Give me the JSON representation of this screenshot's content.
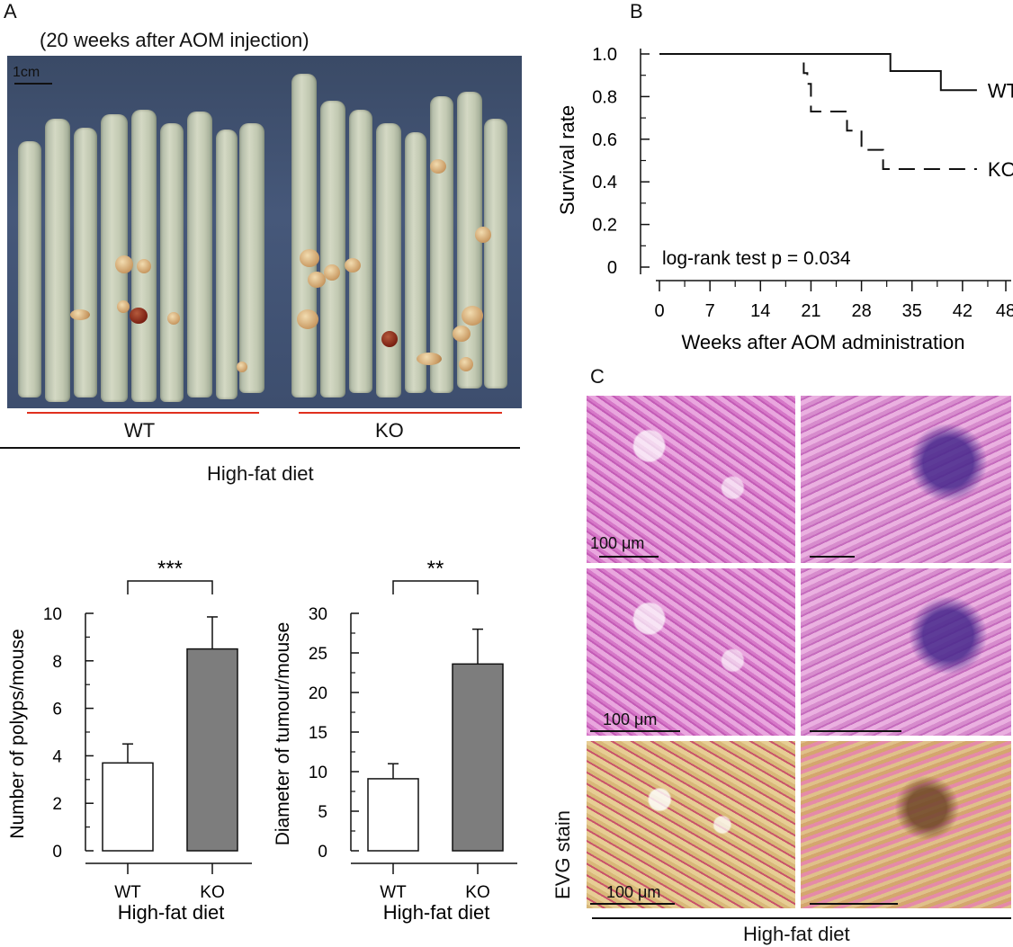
{
  "panel_a": {
    "label": "A",
    "title": "(20 weeks after AOM injection)",
    "scale": "1cm",
    "group_wt": "WT",
    "group_ko": "KO",
    "diet": "High-fat diet"
  },
  "panel_b": {
    "label": "B"
  },
  "panel_c": {
    "label": "C",
    "scale_label": "100 μm",
    "stain_label": "EVG stain",
    "diet": "High-fat diet"
  },
  "chart_data": [
    {
      "type": "line",
      "ylabel": "Survival rate",
      "xlabel": "Weeks after AOM administration",
      "xlim": [
        0,
        48
      ],
      "ylim": [
        0,
        1.0
      ],
      "xticks": [
        0,
        7,
        14,
        21,
        28,
        35,
        42,
        48
      ],
      "yticks": [
        "0",
        "0.2",
        "0.4",
        "0.6",
        "0.8",
        "1.0"
      ],
      "annotation": "log-rank test p = 0.034",
      "series": [
        {
          "name": "WT",
          "style": "solid",
          "x": [
            0,
            32,
            32,
            39,
            39,
            44
          ],
          "y": [
            1.0,
            1.0,
            0.92,
            0.92,
            0.83,
            0.83
          ]
        },
        {
          "name": "KO",
          "style": "dashed",
          "x": [
            20,
            20,
            20.5,
            20.5,
            21,
            21,
            26,
            26,
            28,
            28,
            29,
            29,
            31,
            31,
            44
          ],
          "y": [
            0.96,
            0.91,
            0.91,
            0.86,
            0.86,
            0.73,
            0.73,
            0.64,
            0.64,
            0.55,
            0.55,
            0.55,
            0.55,
            0.46,
            0.46
          ]
        }
      ]
    },
    {
      "type": "bar",
      "ylabel": "Number of polyps/mouse",
      "xlabel": "High-fat diet",
      "categories": [
        "WT",
        "KO"
      ],
      "values": [
        3.7,
        8.5
      ],
      "errors": [
        0.8,
        1.35
      ],
      "ylim": [
        0,
        10
      ],
      "yticks": [
        "0",
        "2",
        "4",
        "6",
        "8",
        "10"
      ],
      "bar_colors": [
        "#ffffff",
        "#7d7d7d"
      ],
      "significance": "***"
    },
    {
      "type": "bar",
      "ylabel": "Diameter of tumour/mouse",
      "xlabel": "High-fat diet",
      "categories": [
        "WT",
        "KO"
      ],
      "values": [
        9.1,
        23.6
      ],
      "errors": [
        1.9,
        4.4
      ],
      "ylim": [
        0,
        30
      ],
      "yticks": [
        "0",
        "5",
        "10",
        "15",
        "20",
        "25",
        "30"
      ],
      "bar_colors": [
        "#ffffff",
        "#7d7d7d"
      ],
      "significance": "**"
    }
  ]
}
